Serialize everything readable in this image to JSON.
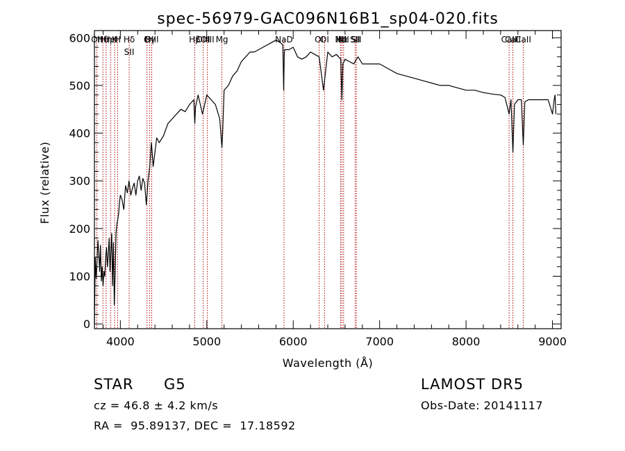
{
  "chart_data": {
    "type": "line",
    "title": "spec-56979-GAC096N16B1_sp04-020.fits",
    "xlabel": "Wavelength (Å)",
    "ylabel": "Flux (relative)",
    "xlim": [
      3700,
      9100
    ],
    "ylim": [
      -10,
      615
    ],
    "xticks": [
      4000,
      5000,
      6000,
      7000,
      8000,
      9000
    ],
    "yticks": [
      0,
      100,
      200,
      300,
      400,
      500,
      600
    ],
    "grid": false,
    "series": [
      {
        "x": [
          3700,
          3710,
          3720,
          3730,
          3740,
          3750,
          3760,
          3770,
          3780,
          3790,
          3800,
          3810,
          3820,
          3830,
          3840,
          3850,
          3860,
          3870,
          3880,
          3890,
          3900,
          3910,
          3920,
          3930,
          3940,
          3950,
          3960,
          3970,
          3980,
          3990,
          4000,
          4020,
          4040,
          4060,
          4080,
          4100,
          4120,
          4140,
          4160,
          4180,
          4200,
          4220,
          4240,
          4260,
          4280,
          4300,
          4320,
          4340,
          4360,
          4380,
          4400,
          4420,
          4450,
          4500,
          4550,
          4600,
          4650,
          4700,
          4750,
          4800,
          4850,
          4861,
          4870,
          4900,
          4950,
          5000,
          5050,
          5100,
          5150,
          5175,
          5183,
          5200,
          5250,
          5300,
          5350,
          5400,
          5450,
          5500,
          5550,
          5600,
          5650,
          5700,
          5750,
          5800,
          5850,
          5880,
          5890,
          5896,
          5900,
          5950,
          6000,
          6050,
          6100,
          6150,
          6200,
          6250,
          6300,
          6350,
          6400,
          6450,
          6500,
          6550,
          6563,
          6575,
          6600,
          6650,
          6700,
          6750,
          6800,
          6900,
          7000,
          7100,
          7200,
          7300,
          7400,
          7500,
          7600,
          7700,
          7800,
          7900,
          8000,
          8100,
          8200,
          8300,
          8400,
          8450,
          8498,
          8520,
          8542,
          8560,
          8600,
          8640,
          8662,
          8680,
          8720,
          8760,
          8800,
          8850,
          8900,
          8950,
          9000,
          9020,
          9030,
          9040
        ],
        "values": [
          0,
          140,
          95,
          130,
          175,
          150,
          110,
          165,
          90,
          120,
          80,
          110,
          100,
          140,
          160,
          120,
          145,
          180,
          110,
          150,
          190,
          80,
          170,
          40,
          110,
          190,
          210,
          220,
          230,
          255,
          270,
          260,
          240,
          290,
          275,
          300,
          270,
          285,
          295,
          270,
          300,
          310,
          280,
          305,
          295,
          250,
          300,
          330,
          380,
          330,
          360,
          390,
          380,
          395,
          420,
          430,
          440,
          450,
          445,
          460,
          470,
          420,
          455,
          480,
          440,
          480,
          470,
          460,
          430,
          370,
          400,
          490,
          500,
          520,
          530,
          550,
          560,
          570,
          570,
          575,
          580,
          585,
          590,
          595,
          590,
          585,
          490,
          560,
          575,
          575,
          580,
          560,
          555,
          560,
          570,
          565,
          560,
          490,
          570,
          560,
          565,
          555,
          470,
          545,
          555,
          550,
          545,
          560,
          545,
          545,
          545,
          535,
          525,
          520,
          515,
          510,
          505,
          500,
          500,
          495,
          490,
          490,
          485,
          482,
          480,
          475,
          440,
          470,
          360,
          460,
          470,
          470,
          375,
          465,
          470,
          470,
          470,
          470,
          470,
          470,
          440,
          470,
          480,
          440
        ]
      }
    ],
    "lines": [
      {
        "x": 3727,
        "rows": [
          "OII"
        ]
      },
      {
        "x": 3798,
        "rows": [
          "Hθ"
        ]
      },
      {
        "x": 3835,
        "rows": [
          "Hη"
        ]
      },
      {
        "x": 3889,
        "rows": [
          "HeI"
        ]
      },
      {
        "x": 3934,
        "rows": [
          "K"
        ]
      },
      {
        "x": 3968,
        "rows": [
          "H"
        ]
      },
      {
        "x": 4102,
        "rows": [
          "Hδ",
          "SII"
        ]
      },
      {
        "x": 4308,
        "rows": [
          "G"
        ]
      },
      {
        "x": 4340,
        "rows": [
          "Hγ"
        ]
      },
      {
        "x": 4363,
        "rows": [
          "OIII"
        ]
      },
      {
        "x": 4861,
        "rows": [
          "Hβ"
        ]
      },
      {
        "x": 4959,
        "rows": [
          "OIII"
        ]
      },
      {
        "x": 5007,
        "rows": [
          "OIII"
        ]
      },
      {
        "x": 5175,
        "rows": [
          "Mg"
        ]
      },
      {
        "x": 5893,
        "rows": [
          "NaD"
        ]
      },
      {
        "x": 6300,
        "rows": [
          "OI"
        ]
      },
      {
        "x": 6363,
        "rows": [
          "OI"
        ]
      },
      {
        "x": 6548,
        "rows": [
          "NII"
        ]
      },
      {
        "x": 6563,
        "rows": [
          "Hα"
        ]
      },
      {
        "x": 6583,
        "rows": [
          "NII"
        ]
      },
      {
        "x": 6716,
        "rows": [
          "SII"
        ]
      },
      {
        "x": 6731,
        "rows": [
          "SII"
        ]
      },
      {
        "x": 8498,
        "rows": [
          "CaII"
        ]
      },
      {
        "x": 8542,
        "rows": [
          "CaII"
        ]
      },
      {
        "x": 8662,
        "rows": [
          "CaII"
        ]
      }
    ],
    "line_color": "#aa0000",
    "spectrum_color": "#000000"
  },
  "info": {
    "object_type": "STAR",
    "subclass": "G5",
    "survey": "LAMOST DR5",
    "redshift": "cz = 46.8 ± 4.2 km/s",
    "obs_date": "Obs-Date: 20141117",
    "coords": "RA =  95.89137, DEC =  17.18592"
  }
}
